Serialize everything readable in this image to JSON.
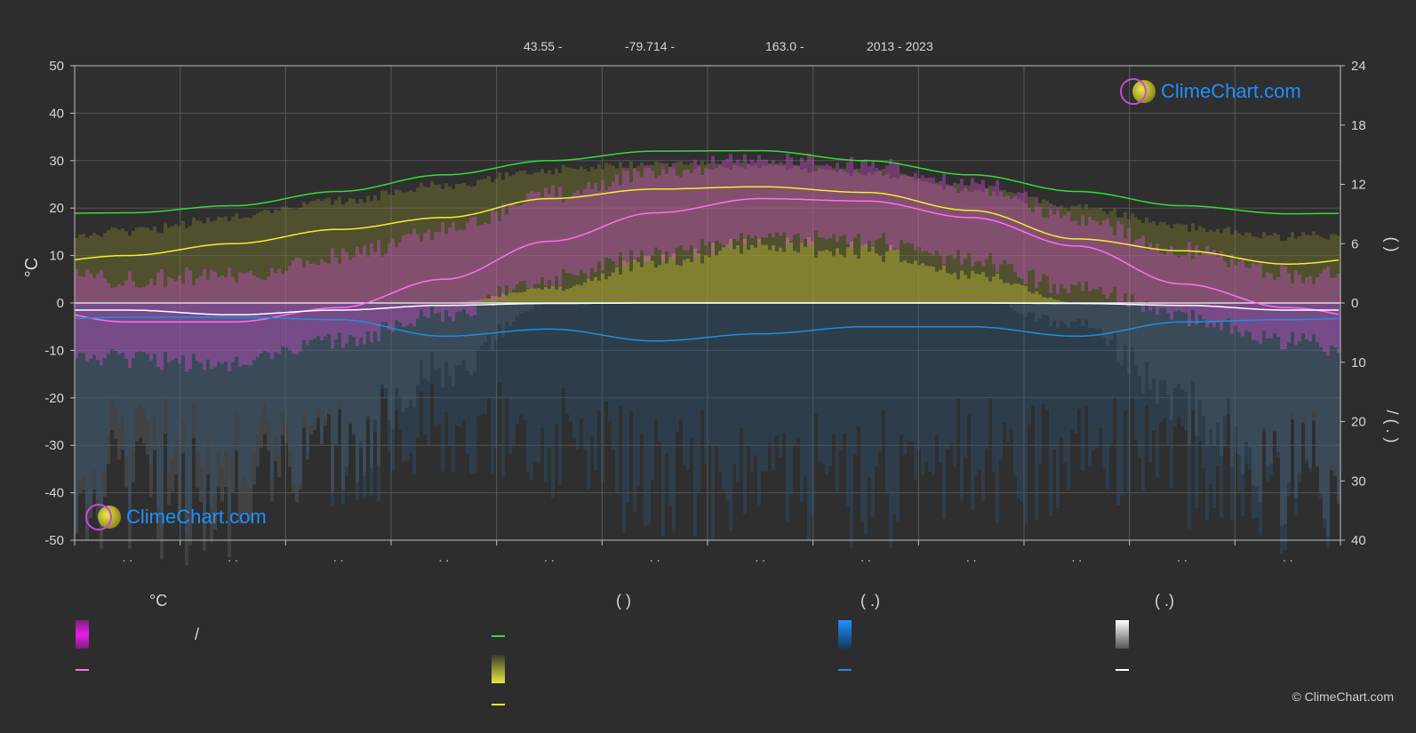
{
  "header": {
    "lat": "43.55 -",
    "lon": "-79.714 -",
    "elev": "163.0 -",
    "years": "2013 - 2023"
  },
  "logo": {
    "text": "ClimeChart.com",
    "icon": "climechart-logo-icon"
  },
  "copyright": "© ClimeChart.com",
  "legend": {
    "col1_head": "°C",
    "col1_slash": "/",
    "col2_head": "(          )",
    "col3_head": "(   .)",
    "col4_head": "(   .)"
  },
  "right_axis_text": {
    "upper": "(          )",
    "lower": "/    (   .   )"
  },
  "colors": {
    "temp_range": "#e040e0",
    "temp_avg": "#ff6ef5",
    "daylight": "#33dd33",
    "sunshine_fill": "#c8c83a",
    "sunshine_line": "#f0f030",
    "rain": "#1e8fe0",
    "snow": "#ffffff"
  },
  "chart_data": {
    "type": "line",
    "ylabel_left": "°C",
    "ylim_left": [
      -50,
      50
    ],
    "yticks_left": [
      50,
      40,
      30,
      20,
      10,
      0,
      -10,
      -20,
      -30,
      -40,
      -50
    ],
    "yticks_right_top": [
      24,
      18,
      12,
      6,
      0
    ],
    "yticks_right_bottom": [
      10,
      20,
      30,
      40
    ],
    "x_tick_labels": [
      ". .",
      ". .",
      ". .",
      ". .",
      ". .",
      ". .",
      ". .",
      ". .",
      ". .",
      ". .",
      ". .",
      ". ."
    ],
    "months": 12,
    "series": [
      {
        "key": "daylight",
        "color": "#33dd33",
        "values": [
          19,
          20.5,
          23.5,
          27,
          30,
          32,
          32.1,
          30,
          27,
          23.5,
          20.5,
          18.8
        ]
      },
      {
        "key": "sunshine",
        "color": "#f0f030",
        "values": [
          10,
          12.5,
          15.5,
          18,
          22,
          24,
          24.5,
          23.3,
          19.5,
          13.5,
          11,
          8.2
        ]
      },
      {
        "key": "temp_avg",
        "color": "#ff6ef5",
        "values": [
          -4,
          -4,
          -1,
          5,
          13,
          19,
          22,
          21.5,
          18,
          12,
          4,
          -1
        ]
      },
      {
        "key": "snow",
        "color": "#ffffff",
        "values": [
          -1.5,
          -2.5,
          -1.5,
          -0.5,
          -0.1,
          0,
          0,
          0,
          0,
          -0.1,
          -0.5,
          -1.5
        ]
      },
      {
        "key": "rain",
        "color": "#1e8fe0",
        "values": [
          -3,
          -3,
          -3.5,
          -7,
          -5.5,
          -8,
          -6.5,
          -5,
          -5,
          -7,
          -4,
          -3.5
        ]
      }
    ],
    "temp_band_max": [
      3,
      4,
      8,
      13,
      21,
      26,
      28,
      27,
      23,
      16,
      9,
      4
    ],
    "temp_band_min": [
      -10,
      -11,
      -6,
      0,
      7,
      12,
      16,
      15,
      11,
      5,
      -1,
      -6
    ],
    "sunshine_band_top": [
      16,
      19,
      22.5,
      26,
      29,
      30,
      30,
      28.5,
      25,
      21,
      17,
      15
    ],
    "sunshine_band_bottom": [
      0,
      0,
      0,
      0,
      3,
      9,
      12,
      11,
      6,
      0,
      0,
      0
    ],
    "rain_depth": [
      -40,
      -42,
      -38,
      -30,
      -35,
      -45,
      -40,
      -45,
      -40,
      -38,
      -40,
      -45
    ],
    "snow_depth": [
      -45,
      -48,
      -35,
      -15,
      0,
      0,
      0,
      0,
      0,
      -5,
      -25,
      -40
    ]
  }
}
